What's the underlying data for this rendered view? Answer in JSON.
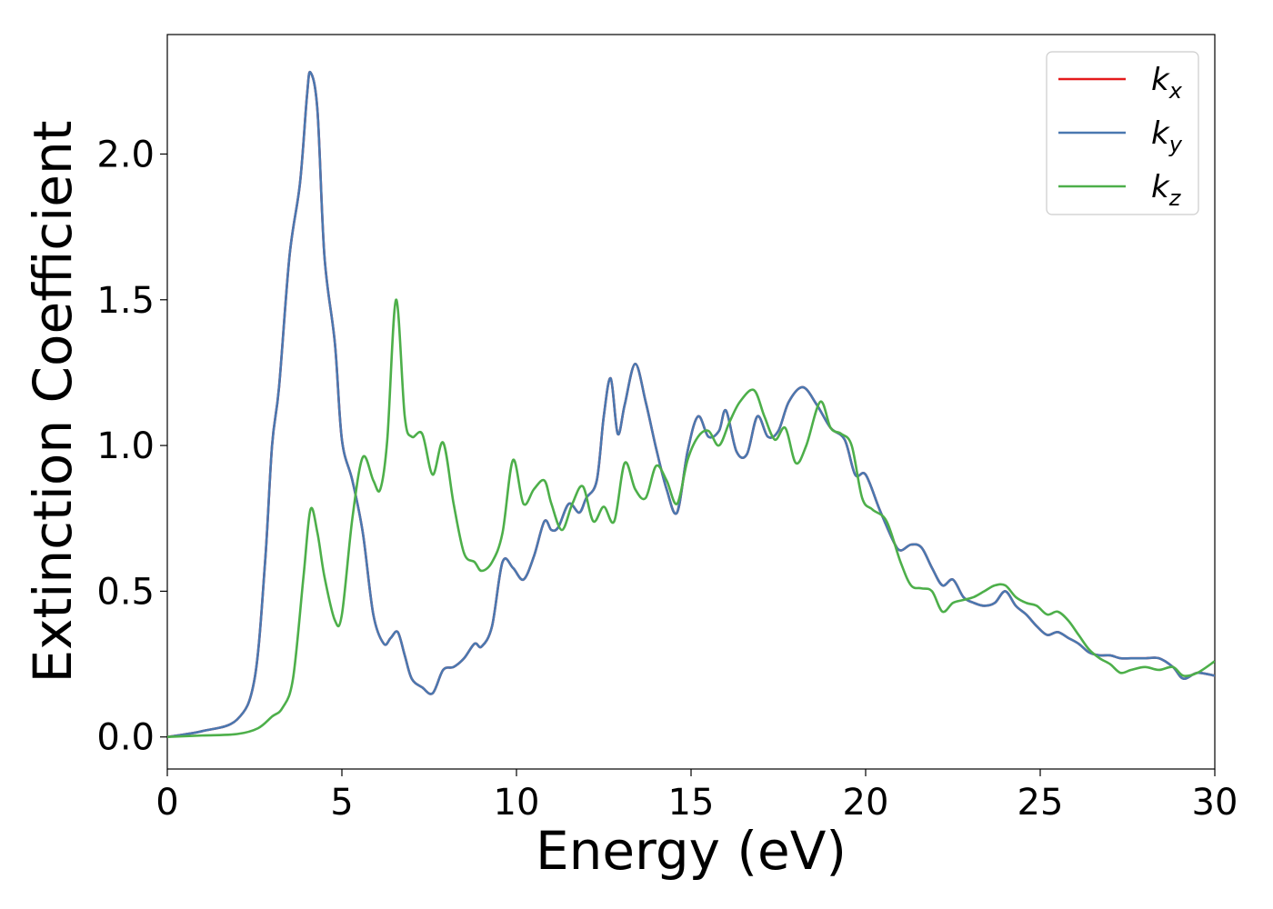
{
  "chart_data": {
    "type": "line",
    "title": "",
    "xlabel": "Energy (eV)",
    "ylabel": "Extinction Coefficient",
    "xlim": [
      0,
      30
    ],
    "ylim": [
      -0.11,
      2.41
    ],
    "xticks": [
      0,
      5,
      10,
      15,
      20,
      25,
      30
    ],
    "yticks": [
      0.0,
      0.5,
      1.0,
      1.5,
      2.0
    ],
    "xtick_labels": [
      "0",
      "5",
      "10",
      "15",
      "20",
      "25",
      "30"
    ],
    "ytick_labels": [
      "0.0",
      "0.5",
      "1.0",
      "1.5",
      "2.0"
    ],
    "grid": false,
    "legend_position": "top-right",
    "series": [
      {
        "name": "k",
        "subscript": "x",
        "color": "#e41a1c",
        "x": [
          0,
          1,
          2,
          2.5,
          2.8,
          3.0,
          3.2,
          3.5,
          3.8,
          4.0,
          4.1,
          4.3,
          4.5,
          4.8,
          5.0,
          5.3,
          5.6,
          5.9,
          6.2,
          6.4,
          6.6,
          6.8,
          7.0,
          7.3,
          7.6,
          7.9,
          8.2,
          8.5,
          8.8,
          9.0,
          9.3,
          9.6,
          9.9,
          10.2,
          10.5,
          10.8,
          11.0,
          11.2,
          11.5,
          11.8,
          12.0,
          12.3,
          12.5,
          12.7,
          12.9,
          13.1,
          13.4,
          13.7,
          14.0,
          14.3,
          14.6,
          14.9,
          15.2,
          15.5,
          15.8,
          16.0,
          16.3,
          16.6,
          16.9,
          17.2,
          17.5,
          17.8,
          18.2,
          18.6,
          19.0,
          19.4,
          19.7,
          20.0,
          20.4,
          20.8,
          21.0,
          21.3,
          21.6,
          21.9,
          22.2,
          22.5,
          22.8,
          23.1,
          23.4,
          23.7,
          24.0,
          24.3,
          24.6,
          24.9,
          25.2,
          25.5,
          25.8,
          26.1,
          26.4,
          26.7,
          27.0,
          27.3,
          27.6,
          28.0,
          28.4,
          28.8,
          29.1,
          29.5,
          30.0
        ],
        "y": [
          0,
          0.02,
          0.06,
          0.2,
          0.6,
          1.0,
          1.2,
          1.65,
          1.9,
          2.2,
          2.28,
          2.15,
          1.65,
          1.35,
          1.02,
          0.88,
          0.7,
          0.42,
          0.32,
          0.34,
          0.36,
          0.28,
          0.2,
          0.17,
          0.15,
          0.23,
          0.24,
          0.27,
          0.32,
          0.31,
          0.38,
          0.6,
          0.58,
          0.54,
          0.62,
          0.74,
          0.71,
          0.72,
          0.8,
          0.77,
          0.82,
          0.88,
          1.1,
          1.23,
          1.04,
          1.14,
          1.28,
          1.15,
          0.99,
          0.85,
          0.77,
          0.98,
          1.1,
          1.03,
          1.05,
          1.12,
          0.98,
          0.97,
          1.1,
          1.03,
          1.05,
          1.15,
          1.2,
          1.14,
          1.06,
          1.02,
          0.9,
          0.9,
          0.78,
          0.67,
          0.64,
          0.66,
          0.65,
          0.58,
          0.52,
          0.54,
          0.48,
          0.46,
          0.45,
          0.46,
          0.5,
          0.45,
          0.42,
          0.38,
          0.35,
          0.36,
          0.34,
          0.32,
          0.29,
          0.28,
          0.28,
          0.27,
          0.27,
          0.27,
          0.27,
          0.24,
          0.2,
          0.22,
          0.21
        ]
      },
      {
        "name": "k",
        "subscript": "y",
        "color": "#4a78b0",
        "x": [
          0,
          1,
          2,
          2.5,
          2.8,
          3.0,
          3.2,
          3.5,
          3.8,
          4.0,
          4.1,
          4.3,
          4.5,
          4.8,
          5.0,
          5.3,
          5.6,
          5.9,
          6.2,
          6.4,
          6.6,
          6.8,
          7.0,
          7.3,
          7.6,
          7.9,
          8.2,
          8.5,
          8.8,
          9.0,
          9.3,
          9.6,
          9.9,
          10.2,
          10.5,
          10.8,
          11.0,
          11.2,
          11.5,
          11.8,
          12.0,
          12.3,
          12.5,
          12.7,
          12.9,
          13.1,
          13.4,
          13.7,
          14.0,
          14.3,
          14.6,
          14.9,
          15.2,
          15.5,
          15.8,
          16.0,
          16.3,
          16.6,
          16.9,
          17.2,
          17.5,
          17.8,
          18.2,
          18.6,
          19.0,
          19.4,
          19.7,
          20.0,
          20.4,
          20.8,
          21.0,
          21.3,
          21.6,
          21.9,
          22.2,
          22.5,
          22.8,
          23.1,
          23.4,
          23.7,
          24.0,
          24.3,
          24.6,
          24.9,
          25.2,
          25.5,
          25.8,
          26.1,
          26.4,
          26.7,
          27.0,
          27.3,
          27.6,
          28.0,
          28.4,
          28.8,
          29.1,
          29.5,
          30.0
        ],
        "y": [
          0,
          0.02,
          0.06,
          0.2,
          0.6,
          1.0,
          1.2,
          1.65,
          1.9,
          2.2,
          2.28,
          2.15,
          1.65,
          1.35,
          1.02,
          0.88,
          0.7,
          0.42,
          0.32,
          0.34,
          0.36,
          0.28,
          0.2,
          0.17,
          0.15,
          0.23,
          0.24,
          0.27,
          0.32,
          0.31,
          0.38,
          0.6,
          0.58,
          0.54,
          0.62,
          0.74,
          0.71,
          0.72,
          0.8,
          0.77,
          0.82,
          0.88,
          1.1,
          1.23,
          1.04,
          1.14,
          1.28,
          1.15,
          0.99,
          0.85,
          0.77,
          0.98,
          1.1,
          1.03,
          1.05,
          1.12,
          0.98,
          0.97,
          1.1,
          1.03,
          1.05,
          1.15,
          1.2,
          1.14,
          1.06,
          1.02,
          0.9,
          0.9,
          0.78,
          0.67,
          0.64,
          0.66,
          0.65,
          0.58,
          0.52,
          0.54,
          0.48,
          0.46,
          0.45,
          0.46,
          0.5,
          0.45,
          0.42,
          0.38,
          0.35,
          0.36,
          0.34,
          0.32,
          0.29,
          0.28,
          0.28,
          0.27,
          0.27,
          0.27,
          0.27,
          0.24,
          0.2,
          0.22,
          0.21
        ]
      },
      {
        "name": "k",
        "subscript": "z",
        "color": "#4daf4a",
        "x": [
          0,
          1,
          2,
          2.6,
          3.0,
          3.3,
          3.6,
          3.9,
          4.1,
          4.3,
          4.5,
          4.8,
          5.0,
          5.3,
          5.6,
          5.9,
          6.1,
          6.3,
          6.55,
          6.8,
          7.0,
          7.3,
          7.6,
          7.9,
          8.2,
          8.5,
          8.8,
          9.0,
          9.3,
          9.6,
          9.9,
          10.2,
          10.5,
          10.8,
          11.0,
          11.3,
          11.6,
          11.9,
          12.2,
          12.5,
          12.8,
          13.1,
          13.4,
          13.7,
          14.0,
          14.3,
          14.6,
          14.9,
          15.2,
          15.5,
          15.8,
          16.1,
          16.4,
          16.8,
          17.1,
          17.4,
          17.7,
          18.0,
          18.3,
          18.7,
          19.0,
          19.3,
          19.6,
          19.9,
          20.2,
          20.6,
          21.0,
          21.3,
          21.6,
          21.9,
          22.2,
          22.5,
          22.8,
          23.1,
          23.4,
          23.7,
          24.0,
          24.3,
          24.6,
          24.9,
          25.2,
          25.5,
          25.8,
          26.1,
          26.4,
          26.7,
          27.0,
          27.3,
          27.6,
          28.0,
          28.4,
          28.8,
          29.1,
          29.5,
          30.0
        ],
        "y": [
          0,
          0.005,
          0.01,
          0.03,
          0.07,
          0.1,
          0.2,
          0.55,
          0.78,
          0.7,
          0.55,
          0.4,
          0.42,
          0.75,
          0.96,
          0.88,
          0.85,
          1.02,
          1.5,
          1.1,
          1.03,
          1.04,
          0.9,
          1.01,
          0.8,
          0.63,
          0.6,
          0.57,
          0.6,
          0.7,
          0.95,
          0.8,
          0.85,
          0.88,
          0.8,
          0.71,
          0.8,
          0.86,
          0.74,
          0.79,
          0.74,
          0.94,
          0.85,
          0.82,
          0.93,
          0.88,
          0.8,
          0.95,
          1.03,
          1.05,
          1.0,
          1.08,
          1.15,
          1.19,
          1.1,
          1.02,
          1.06,
          0.94,
          1.0,
          1.15,
          1.06,
          1.04,
          1.0,
          0.82,
          0.78,
          0.74,
          0.6,
          0.52,
          0.51,
          0.5,
          0.43,
          0.46,
          0.47,
          0.48,
          0.5,
          0.52,
          0.52,
          0.48,
          0.46,
          0.45,
          0.42,
          0.43,
          0.4,
          0.35,
          0.3,
          0.27,
          0.25,
          0.22,
          0.23,
          0.24,
          0.23,
          0.24,
          0.21,
          0.22,
          0.26
        ]
      }
    ]
  }
}
